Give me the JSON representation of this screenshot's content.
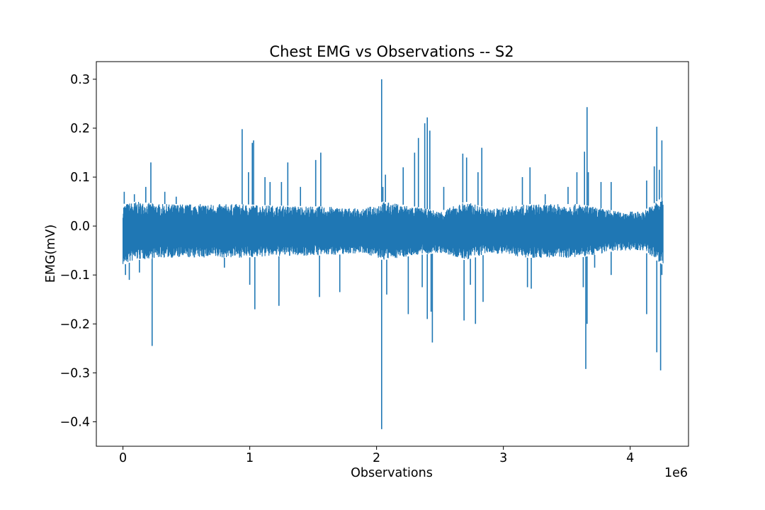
{
  "chart_data": {
    "type": "line",
    "title": "Chest EMG vs Observations -- S2",
    "xlabel": "Observations",
    "ylabel": "EMG(mV)",
    "x_offset_label": "1e6",
    "xlim": [
      -0.21,
      4.46
    ],
    "ylim": [
      -0.45,
      0.336
    ],
    "x_ticks": [
      {
        "value": 0,
        "label": "0"
      },
      {
        "value": 1,
        "label": "1"
      },
      {
        "value": 2,
        "label": "2"
      },
      {
        "value": 3,
        "label": "3"
      },
      {
        "value": 4,
        "label": "4"
      }
    ],
    "y_ticks": [
      {
        "value": 0.3,
        "label": "0.3"
      },
      {
        "value": 0.2,
        "label": "0.2"
      },
      {
        "value": 0.1,
        "label": "0.1"
      },
      {
        "value": 0.0,
        "label": "0.0"
      },
      {
        "value": -0.1,
        "label": "−0.1"
      },
      {
        "value": -0.2,
        "label": "−0.2"
      },
      {
        "value": -0.3,
        "label": "−0.3"
      },
      {
        "value": -0.4,
        "label": "−0.4"
      }
    ],
    "grid": false,
    "legend": "none",
    "series": [
      {
        "color": "#1f77b4",
        "x_range": [
          0,
          4.26
        ],
        "baseline_band": [
          {
            "x": 0.0,
            "y_max": 0.045,
            "y_min": -0.08
          },
          {
            "x": 0.1,
            "y_max": 0.05,
            "y_min": -0.07
          },
          {
            "x": 0.3,
            "y_max": 0.045,
            "y_min": -0.065
          },
          {
            "x": 0.6,
            "y_max": 0.045,
            "y_min": -0.065
          },
          {
            "x": 0.9,
            "y_max": 0.045,
            "y_min": -0.065
          },
          {
            "x": 1.2,
            "y_max": 0.042,
            "y_min": -0.062
          },
          {
            "x": 1.6,
            "y_max": 0.04,
            "y_min": -0.06
          },
          {
            "x": 1.9,
            "y_max": 0.035,
            "y_min": -0.055
          },
          {
            "x": 2.05,
            "y_max": 0.05,
            "y_min": -0.07
          },
          {
            "x": 2.3,
            "y_max": 0.04,
            "y_min": -0.06
          },
          {
            "x": 2.5,
            "y_max": 0.03,
            "y_min": -0.055
          },
          {
            "x": 2.7,
            "y_max": 0.05,
            "y_min": -0.07
          },
          {
            "x": 2.9,
            "y_max": 0.035,
            "y_min": -0.055
          },
          {
            "x": 3.2,
            "y_max": 0.045,
            "y_min": -0.065
          },
          {
            "x": 3.6,
            "y_max": 0.045,
            "y_min": -0.065
          },
          {
            "x": 3.9,
            "y_max": 0.03,
            "y_min": -0.05
          },
          {
            "x": 4.1,
            "y_max": 0.03,
            "y_min": -0.05
          },
          {
            "x": 4.26,
            "y_max": 0.06,
            "y_min": -0.08
          }
        ],
        "spikes": [
          {
            "x": 0.01,
            "y": 0.07
          },
          {
            "x": 0.02,
            "y": -0.1
          },
          {
            "x": 0.05,
            "y": -0.11
          },
          {
            "x": 0.09,
            "y": 0.065
          },
          {
            "x": 0.13,
            "y": -0.095
          },
          {
            "x": 0.18,
            "y": 0.08
          },
          {
            "x": 0.22,
            "y": 0.13
          },
          {
            "x": 0.23,
            "y": -0.245
          },
          {
            "x": 0.33,
            "y": 0.07
          },
          {
            "x": 0.42,
            "y": 0.06
          },
          {
            "x": 0.8,
            "y": -0.085
          },
          {
            "x": 0.94,
            "y": 0.198
          },
          {
            "x": 0.99,
            "y": 0.11
          },
          {
            "x": 1.0,
            "y": -0.12
          },
          {
            "x": 1.02,
            "y": 0.17
          },
          {
            "x": 1.03,
            "y": 0.175
          },
          {
            "x": 1.04,
            "y": -0.17
          },
          {
            "x": 1.12,
            "y": 0.1
          },
          {
            "x": 1.16,
            "y": 0.09
          },
          {
            "x": 1.23,
            "y": -0.163
          },
          {
            "x": 1.25,
            "y": 0.09
          },
          {
            "x": 1.3,
            "y": 0.13
          },
          {
            "x": 1.4,
            "y": 0.08
          },
          {
            "x": 1.52,
            "y": 0.135
          },
          {
            "x": 1.55,
            "y": -0.145
          },
          {
            "x": 1.56,
            "y": 0.15
          },
          {
            "x": 1.71,
            "y": -0.135
          },
          {
            "x": 2.04,
            "y": 0.3
          },
          {
            "x": 2.04,
            "y": -0.415
          },
          {
            "x": 2.05,
            "y": 0.08
          },
          {
            "x": 2.07,
            "y": 0.105
          },
          {
            "x": 2.08,
            "y": -0.14
          },
          {
            "x": 2.21,
            "y": 0.12
          },
          {
            "x": 2.25,
            "y": -0.18
          },
          {
            "x": 2.3,
            "y": 0.15
          },
          {
            "x": 2.33,
            "y": 0.18
          },
          {
            "x": 2.36,
            "y": -0.125
          },
          {
            "x": 2.38,
            "y": 0.21
          },
          {
            "x": 2.4,
            "y": 0.222
          },
          {
            "x": 2.4,
            "y": -0.19
          },
          {
            "x": 2.42,
            "y": 0.195
          },
          {
            "x": 2.43,
            "y": -0.175
          },
          {
            "x": 2.44,
            "y": -0.238
          },
          {
            "x": 2.53,
            "y": 0.08
          },
          {
            "x": 2.68,
            "y": 0.148
          },
          {
            "x": 2.69,
            "y": -0.193
          },
          {
            "x": 2.71,
            "y": 0.14
          },
          {
            "x": 2.74,
            "y": -0.12
          },
          {
            "x": 2.78,
            "y": -0.2
          },
          {
            "x": 2.8,
            "y": 0.11
          },
          {
            "x": 2.83,
            "y": 0.16
          },
          {
            "x": 2.84,
            "y": -0.155
          },
          {
            "x": 3.15,
            "y": 0.1
          },
          {
            "x": 3.19,
            "y": -0.125
          },
          {
            "x": 3.21,
            "y": 0.12
          },
          {
            "x": 3.22,
            "y": -0.128
          },
          {
            "x": 3.33,
            "y": 0.065
          },
          {
            "x": 3.51,
            "y": 0.08
          },
          {
            "x": 3.58,
            "y": 0.11
          },
          {
            "x": 3.63,
            "y": -0.125
          },
          {
            "x": 3.64,
            "y": 0.152
          },
          {
            "x": 3.65,
            "y": -0.292
          },
          {
            "x": 3.66,
            "y": 0.243
          },
          {
            "x": 3.66,
            "y": -0.2
          },
          {
            "x": 3.67,
            "y": 0.11
          },
          {
            "x": 3.72,
            "y": -0.085
          },
          {
            "x": 3.77,
            "y": 0.09
          },
          {
            "x": 3.85,
            "y": 0.09
          },
          {
            "x": 3.85,
            "y": -0.1
          },
          {
            "x": 4.13,
            "y": 0.093
          },
          {
            "x": 4.13,
            "y": -0.18
          },
          {
            "x": 4.19,
            "y": 0.122
          },
          {
            "x": 4.21,
            "y": 0.203
          },
          {
            "x": 4.21,
            "y": -0.258
          },
          {
            "x": 4.23,
            "y": 0.115
          },
          {
            "x": 4.24,
            "y": -0.295
          },
          {
            "x": 4.25,
            "y": 0.175
          },
          {
            "x": 4.25,
            "y": -0.1
          }
        ]
      }
    ]
  }
}
